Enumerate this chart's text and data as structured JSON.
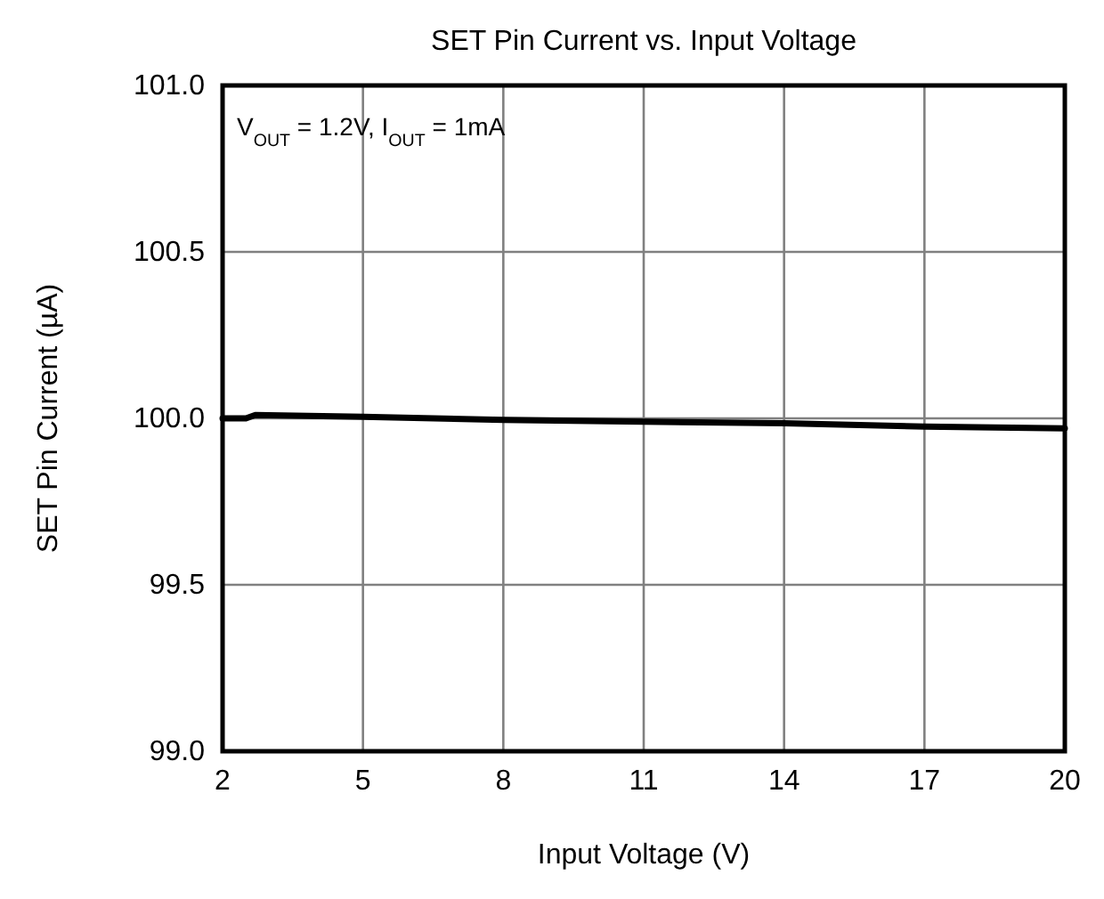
{
  "chart_data": {
    "type": "line",
    "title": "SET Pin Current vs. Input Voltage",
    "xlabel": "Input Voltage (V)",
    "ylabel": "SET Pin Current (µA)",
    "annotations": [
      "V$_{OUT}$ = 1.2V, I$_{OUT}$ = 1mA"
    ],
    "x": [
      2,
      2.5,
      2.7,
      5,
      8,
      11,
      14,
      17,
      20
    ],
    "series": [
      {
        "color": "#000000",
        "values": [
          100.0,
          100.0,
          100.01,
          100.005,
          99.995,
          99.99,
          99.985,
          99.975,
          99.97
        ]
      }
    ],
    "xlim": [
      2,
      20
    ],
    "xticks": [
      2,
      5,
      8,
      11,
      14,
      17,
      20
    ],
    "ylim": [
      99.0,
      101.0
    ],
    "yticks": [
      {
        "value": 99.0,
        "label": "99.0"
      },
      {
        "value": 99.5,
        "label": "99.5"
      },
      {
        "value": 100.0,
        "label": "100.0"
      },
      {
        "value": 100.5,
        "label": "100.5"
      },
      {
        "value": 101.0,
        "label": "101.0"
      }
    ],
    "grid": true,
    "marker": "none",
    "line_style": "solid"
  }
}
